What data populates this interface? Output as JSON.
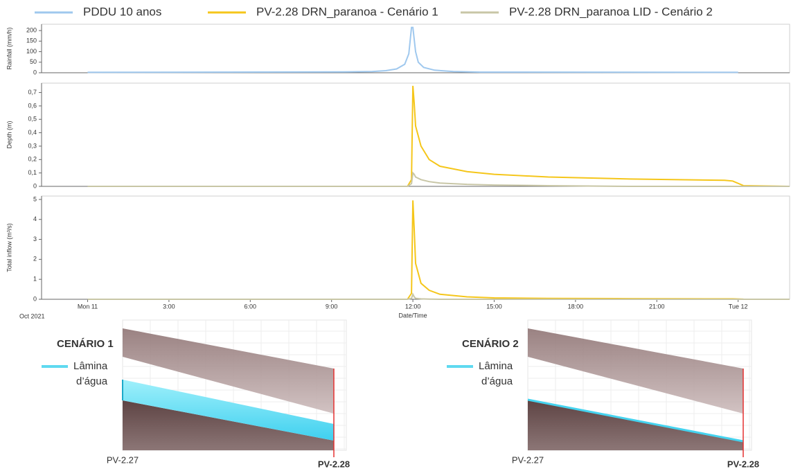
{
  "chart_data": [
    {
      "type": "line",
      "ylabel": "Rainfall (mm/h)",
      "x": [
        0,
        9.5,
        10.5,
        11,
        11.4,
        11.7,
        11.85,
        11.95,
        12.0,
        12.1,
        12.2,
        12.4,
        12.8,
        13.5,
        14.5,
        24
      ],
      "series": [
        {
          "name": "PDDU 10 anos",
          "color": "#9fc8ee",
          "values": [
            2,
            4,
            6,
            10,
            18,
            40,
            90,
            215,
            215,
            100,
            50,
            25,
            12,
            6,
            3,
            2
          ]
        }
      ],
      "xlim": [
        -1.7,
        25.9
      ],
      "ylim": [
        0,
        230
      ],
      "yticks": [
        0,
        50,
        100,
        150,
        200
      ]
    },
    {
      "type": "line",
      "ylabel": "Depth (m)",
      "x": [
        0,
        11.8,
        11.95,
        12.0,
        12.05,
        12.1,
        12.3,
        12.6,
        13,
        14,
        15,
        17,
        20,
        23.5,
        23.8,
        24.2,
        25.9
      ],
      "series": [
        {
          "name": "PV-2.28 DRN_paranoa - Cenário 1",
          "color": "#f5c61a",
          "values": [
            0,
            0,
            0.05,
            0.75,
            0.62,
            0.45,
            0.3,
            0.2,
            0.15,
            0.11,
            0.09,
            0.07,
            0.055,
            0.045,
            0.04,
            0.005,
            0
          ]
        },
        {
          "name": "PV-2.28 DRN_paranoa LID - Cenário 2",
          "color": "#c8c6a6",
          "values": [
            0,
            0,
            0.02,
            0.1,
            0.09,
            0.07,
            0.05,
            0.035,
            0.025,
            0.015,
            0.01,
            0.005,
            0,
            0,
            0,
            0,
            0
          ]
        }
      ],
      "xlim": [
        -1.7,
        25.9
      ],
      "ylim": [
        0,
        0.77
      ],
      "yticks": [
        0,
        {
          "value": 0.1,
          "label": "0,1"
        },
        {
          "value": 0.2,
          "label": "0,2"
        },
        {
          "value": 0.3,
          "label": "0,3"
        },
        {
          "value": 0.4,
          "label": "0,4"
        },
        {
          "value": 0.5,
          "label": "0,5"
        },
        {
          "value": 0.6,
          "label": "0,6"
        },
        {
          "value": 0.7,
          "label": "0,7"
        }
      ]
    },
    {
      "type": "line",
      "ylabel": "Total inflow (m³/s)",
      "xlabel": "Date/Time",
      "date_label": "Oct 2021",
      "x": [
        0,
        11.8,
        11.95,
        12.0,
        12.05,
        12.1,
        12.3,
        12.6,
        13,
        14,
        15,
        17,
        20,
        23.5,
        23.8,
        24.2,
        25.9
      ],
      "series": [
        {
          "color": "#f5c61a",
          "values": [
            0,
            0,
            0.3,
            4.95,
            3.5,
            1.8,
            0.8,
            0.45,
            0.25,
            0.12,
            0.07,
            0.04,
            0.03,
            0.02,
            0.02,
            0.005,
            0
          ]
        },
        {
          "color": "#c8c6a6",
          "values": [
            0,
            0,
            0.05,
            0.25,
            0.12,
            0.05,
            0.02,
            0.01,
            0,
            0,
            0,
            0,
            0,
            0,
            0,
            0,
            0
          ]
        }
      ],
      "xlim": [
        -1.7,
        25.9
      ],
      "ylim": [
        0,
        5.17
      ],
      "yticks": [
        0,
        1,
        2,
        3,
        4,
        5
      ],
      "xticks": [
        {
          "value": 0,
          "label": "Mon 11"
        },
        {
          "value": 3,
          "label": "3:00"
        },
        {
          "value": 6,
          "label": "6:00"
        },
        {
          "value": 9,
          "label": "9:00"
        },
        {
          "value": 12,
          "label": "12:00"
        },
        {
          "value": 15,
          "label": "15:00"
        },
        {
          "value": 18,
          "label": "18:00"
        },
        {
          "value": 21,
          "label": "21:00"
        },
        {
          "value": 24,
          "label": "Tue 12"
        }
      ]
    }
  ],
  "profiles": [
    {
      "title": "CENÁRIO 1",
      "legend": [
        "Lâmina",
        "d’água"
      ],
      "nodes": [
        "PV-2.27",
        "PV-2.28"
      ]
    },
    {
      "title": "CENÁRIO 2",
      "legend": [
        "Lâmina",
        "d’água"
      ],
      "nodes": [
        "PV-2.27",
        "PV-2.28"
      ]
    }
  ]
}
